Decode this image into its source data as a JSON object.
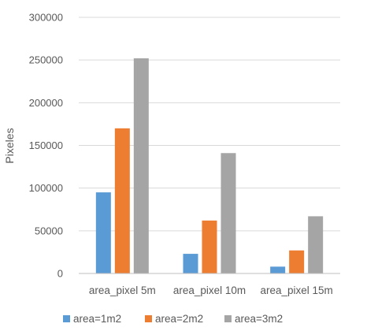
{
  "chart_data": {
    "type": "bar",
    "title": "",
    "xlabel": "",
    "ylabel": "Pixeles",
    "ylim": [
      0,
      300000
    ],
    "yticks": [
      0,
      50000,
      100000,
      150000,
      200000,
      250000,
      300000
    ],
    "grid": true,
    "legend": "bottom",
    "categories": [
      "area_pixel 5m",
      "area_pixel 10m",
      "area_pixel 15m"
    ],
    "series": [
      {
        "name": "area=1m2",
        "color": "#5b9bd5",
        "values": [
          95000,
          23000,
          8000
        ]
      },
      {
        "name": "area=2m2",
        "color": "#ed7d31",
        "values": [
          170000,
          62000,
          27000
        ]
      },
      {
        "name": "area=3m2",
        "color": "#a5a5a5",
        "values": [
          252000,
          141000,
          67000
        ]
      }
    ]
  }
}
